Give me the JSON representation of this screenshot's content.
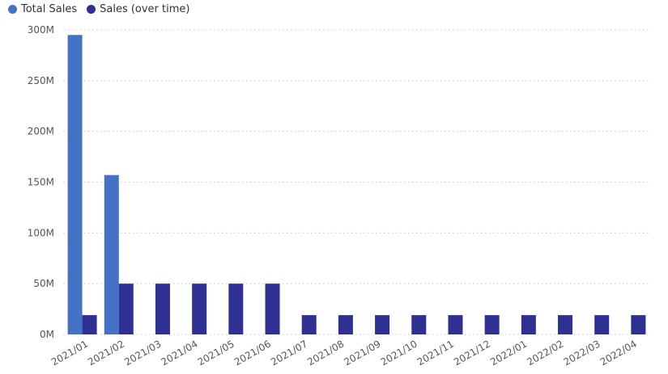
{
  "chart_data": {
    "type": "bar",
    "categories": [
      "2021/01",
      "2021/02",
      "2021/03",
      "2021/04",
      "2021/05",
      "2021/06",
      "2021/07",
      "2021/08",
      "2021/09",
      "2021/10",
      "2021/11",
      "2021/12",
      "2022/01",
      "2022/02",
      "2022/03",
      "2022/04"
    ],
    "series": [
      {
        "name": "Total Sales",
        "color": "#4472c4",
        "values": [
          295000000,
          157000000,
          null,
          null,
          null,
          null,
          null,
          null,
          null,
          null,
          null,
          null,
          null,
          null,
          null,
          null
        ]
      },
      {
        "name": "Sales (over time)",
        "color": "#2e3192",
        "values": [
          19000000,
          50000000,
          50000000,
          50000000,
          50000000,
          50000000,
          19000000,
          19000000,
          19000000,
          19000000,
          19000000,
          19000000,
          19000000,
          19000000,
          19000000,
          19000000
        ]
      }
    ],
    "ylim": [
      0,
      300000000
    ],
    "yticks": [
      0,
      50000000,
      100000000,
      150000000,
      200000000,
      250000000,
      300000000
    ],
    "ytick_labels": [
      "0M",
      "50M",
      "100M",
      "150M",
      "200M",
      "250M",
      "300M"
    ],
    "grid": true,
    "legend_position": "top-left",
    "xlabel": "",
    "ylabel": ""
  }
}
